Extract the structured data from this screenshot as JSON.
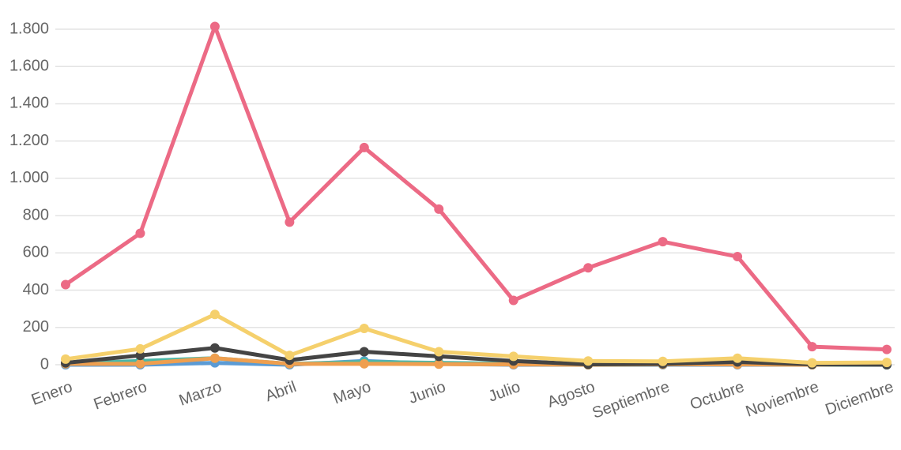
{
  "chart_data": {
    "type": "line",
    "categories": [
      "Enero",
      "Febrero",
      "Marzo",
      "Abril",
      "Mayo",
      "Junio",
      "Julio",
      "Agosto",
      "Septiembre",
      "Octubre",
      "Noviembre",
      "Diciembre"
    ],
    "series": [
      {
        "color": "#5b9bd5",
        "values": [
          0,
          0,
          10,
          0,
          20,
          5,
          0,
          0,
          0,
          0,
          0,
          0
        ]
      },
      {
        "color": "#4bb7a8",
        "values": [
          5,
          20,
          35,
          5,
          15,
          10,
          5,
          0,
          2,
          3,
          0,
          0
        ]
      },
      {
        "color": "#ef9f4f",
        "values": [
          5,
          5,
          35,
          5,
          5,
          3,
          2,
          0,
          2,
          2,
          0,
          5
        ]
      },
      {
        "color": "#444444",
        "values": [
          10,
          50,
          90,
          25,
          70,
          45,
          20,
          2,
          5,
          15,
          2,
          0
        ]
      },
      {
        "color": "#f5d06c",
        "values": [
          30,
          85,
          270,
          50,
          195,
          70,
          45,
          20,
          18,
          35,
          10,
          12
        ]
      },
      {
        "color": "#ec6a85",
        "values": [
          430,
          705,
          1815,
          765,
          1165,
          835,
          345,
          520,
          660,
          580,
          97,
          82
        ]
      }
    ],
    "ylim": [
      0,
      1800
    ],
    "yticks": [
      0,
      200,
      400,
      600,
      800,
      {
        "value": 1000,
        "label": "1.000"
      },
      {
        "value": 1200,
        "label": "1.200"
      },
      {
        "value": 1400,
        "label": "1.400"
      },
      {
        "value": 1600,
        "label": "1.600"
      },
      {
        "value": 1800,
        "label": "1.800"
      }
    ],
    "grid": true
  }
}
